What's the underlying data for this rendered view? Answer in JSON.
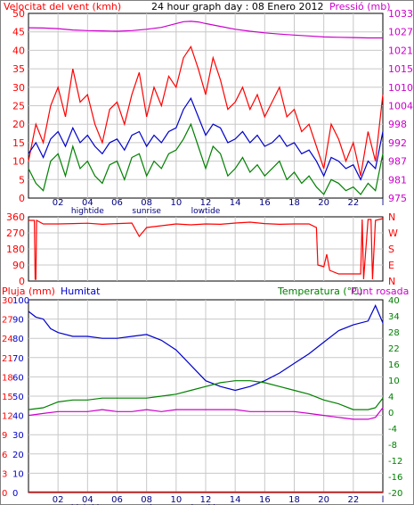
{
  "colors": {
    "wind_gust": "#ff0000",
    "wind_avg": "#0000cc",
    "wind_min": "#008000",
    "pressure": "#cc00cc",
    "direction": "#ff0000",
    "rain": "#ff0000",
    "humidity": "#0000cc",
    "temperature": "#008000",
    "dewpoint": "#cc00cc",
    "grid": "#c8c8c8",
    "panel_border": "#000000"
  },
  "chart_data": [
    {
      "type": "line",
      "id": "wind_pressure",
      "title": "24 hour graph day : 08 Enero 2012",
      "ylabel_left": "Velocitat del vent (kmh)",
      "ylabel_right": "Pressió (mb)",
      "x_ticks": [
        "02",
        "04",
        "06",
        "08",
        "10",
        "12",
        "14",
        "16",
        "18",
        "20",
        "22",
        "l"
      ],
      "x_annotations": [
        "hightide",
        "sunrise",
        "lowtide"
      ],
      "y_left_ticks": [
        "0",
        "5",
        "10",
        "15",
        "20",
        "25",
        "30",
        "35",
        "40",
        "45",
        "50"
      ],
      "y_right_ticks": [
        "975",
        "981",
        "987",
        "992",
        "998",
        "1004",
        "1010",
        "1015",
        "1021",
        "1027",
        "1033"
      ],
      "y_left_range": [
        0,
        50
      ],
      "y_right_range": [
        975,
        1033
      ],
      "x_range": [
        0,
        24
      ],
      "grid": true,
      "series": [
        {
          "key": "gust",
          "color_key": "wind_gust",
          "axis": "left",
          "x": [
            0,
            0.5,
            1,
            1.5,
            2,
            2.5,
            3,
            3.5,
            4,
            4.5,
            5,
            5.5,
            6,
            6.5,
            7,
            7.5,
            8,
            8.5,
            9,
            9.5,
            10,
            10.5,
            11,
            11.5,
            12,
            12.5,
            13,
            13.5,
            14,
            14.5,
            15,
            15.5,
            16,
            16.5,
            17,
            17.5,
            18,
            18.5,
            19,
            19.5,
            20,
            20.5,
            21,
            21.5,
            22,
            22.5,
            23,
            23.5,
            24
          ],
          "y": [
            10,
            20,
            15,
            25,
            30,
            22,
            35,
            26,
            28,
            20,
            15,
            24,
            26,
            20,
            28,
            34,
            22,
            30,
            25,
            33,
            30,
            38,
            41,
            35,
            28,
            38,
            32,
            24,
            26,
            30,
            24,
            28,
            22,
            26,
            30,
            22,
            24,
            18,
            20,
            14,
            8,
            20,
            16,
            10,
            15,
            6,
            18,
            10,
            28
          ]
        },
        {
          "key": "avg",
          "color_key": "wind_avg",
          "axis": "left",
          "x": [
            0,
            0.5,
            1,
            1.5,
            2,
            2.5,
            3,
            3.5,
            4,
            4.5,
            5,
            5.5,
            6,
            6.5,
            7,
            7.5,
            8,
            8.5,
            9,
            9.5,
            10,
            10.5,
            11,
            11.5,
            12,
            12.5,
            13,
            13.5,
            14,
            14.5,
            15,
            15.5,
            16,
            16.5,
            17,
            17.5,
            18,
            18.5,
            19,
            19.5,
            20,
            20.5,
            21,
            21.5,
            22,
            22.5,
            23,
            23.5,
            24
          ],
          "y": [
            12,
            15,
            11,
            16,
            18,
            14,
            19,
            15,
            17,
            14,
            12,
            15,
            16,
            13,
            17,
            18,
            14,
            17,
            15,
            18,
            19,
            24,
            27,
            22,
            17,
            20,
            19,
            15,
            16,
            18,
            15,
            17,
            14,
            15,
            17,
            14,
            15,
            12,
            13,
            10,
            6,
            11,
            10,
            8,
            9,
            5,
            10,
            8,
            18
          ]
        },
        {
          "key": "min",
          "color_key": "wind_min",
          "axis": "left",
          "x": [
            0,
            0.5,
            1,
            1.5,
            2,
            2.5,
            3,
            3.5,
            4,
            4.5,
            5,
            5.5,
            6,
            6.5,
            7,
            7.5,
            8,
            8.5,
            9,
            9.5,
            10,
            10.5,
            11,
            11.5,
            12,
            12.5,
            13,
            13.5,
            14,
            14.5,
            15,
            15.5,
            16,
            16.5,
            17,
            17.5,
            18,
            18.5,
            19,
            19.5,
            20,
            20.5,
            21,
            21.5,
            22,
            22.5,
            23,
            23.5,
            24
          ],
          "y": [
            8,
            4,
            2,
            10,
            12,
            6,
            14,
            8,
            10,
            6,
            4,
            9,
            10,
            5,
            11,
            12,
            6,
            10,
            8,
            12,
            13,
            16,
            20,
            14,
            8,
            14,
            12,
            6,
            8,
            11,
            7,
            9,
            6,
            8,
            10,
            5,
            7,
            4,
            6,
            3,
            1,
            5,
            4,
            2,
            3,
            1,
            4,
            2,
            12
          ]
        },
        {
          "key": "pressure",
          "color_key": "pressure",
          "axis": "right",
          "x": [
            0,
            1,
            2,
            3,
            4,
            5,
            6,
            7,
            8,
            9,
            10,
            10.5,
            11,
            11.5,
            12,
            13,
            14,
            15,
            16,
            17,
            18,
            19,
            20,
            21,
            22,
            23,
            24
          ],
          "y": [
            1028.5,
            1028.4,
            1028.2,
            1027.8,
            1027.6,
            1027.5,
            1027.4,
            1027.6,
            1028,
            1028.6,
            1029.8,
            1030.4,
            1030.5,
            1030.3,
            1029.8,
            1028.9,
            1028,
            1027.4,
            1026.9,
            1026.5,
            1026.2,
            1025.9,
            1025.6,
            1025.5,
            1025.4,
            1025.3,
            1025.3
          ]
        }
      ]
    },
    {
      "type": "line",
      "id": "wind_direction",
      "y_left_ticks": [
        "0",
        "90",
        "180",
        "270",
        "360"
      ],
      "y_right_ticks": [
        "N",
        "E",
        "S",
        "W",
        "N"
      ],
      "y_range": [
        0,
        360
      ],
      "x_range": [
        0,
        24
      ],
      "grid": true,
      "series": [
        {
          "key": "direction",
          "color_key": "direction",
          "x": [
            0,
            0.4,
            0.45,
            0.5,
            0.55,
            1,
            2,
            3,
            4,
            5,
            6,
            7,
            7.5,
            8,
            9,
            10,
            11,
            12,
            13,
            14,
            15,
            16,
            17,
            18,
            19,
            19.5,
            19.6,
            20,
            20.2,
            20.4,
            21,
            22,
            22.5,
            22.6,
            22.7,
            23,
            23.2,
            23.3,
            23.5,
            24
          ],
          "y": [
            340,
            340,
            10,
            10,
            340,
            320,
            320,
            322,
            324,
            318,
            322,
            325,
            250,
            300,
            310,
            320,
            315,
            320,
            318,
            325,
            330,
            322,
            318,
            320,
            320,
            300,
            90,
            80,
            150,
            60,
            40,
            40,
            40,
            345,
            10,
            345,
            345,
            10,
            340,
            350
          ]
        }
      ]
    },
    {
      "type": "line",
      "id": "rain_humidity_temperature",
      "ylabel_rain": "Pluja (mm)",
      "ylabel_humidity": "Humitat",
      "ylabel_right": "Temperatura (°C)",
      "ylabel_right2": "Punt rosada",
      "x_ticks": [
        "02",
        "04",
        "06",
        "08",
        "10",
        "12",
        "14",
        "16",
        "18",
        "20",
        "22",
        "l"
      ],
      "x_annotations": [
        "hightide",
        "sunrise",
        "lowtide"
      ],
      "y_humidity_ticks": [
        "0",
        "10",
        "20",
        "30",
        "40",
        "50",
        "60",
        "70",
        "80",
        "90",
        "100"
      ],
      "y_rain_ticks": [
        "0",
        "3",
        "6",
        "9",
        "12",
        "15",
        "18",
        "21",
        "24",
        "27",
        "30"
      ],
      "y_right_ticks": [
        "-20",
        "-16",
        "-12",
        "-8",
        "-4",
        "0",
        "4",
        "10",
        "16",
        "22",
        "28",
        "34",
        "40"
      ],
      "y_humidity_range": [
        0,
        100
      ],
      "x_range": [
        0,
        24
      ],
      "grid": true,
      "series": [
        {
          "key": "rain",
          "color_key": "rain",
          "axis": "humidity",
          "x": [
            0,
            24
          ],
          "y": [
            0.3,
            0.3
          ]
        },
        {
          "key": "humidity",
          "color_key": "humidity",
          "axis": "humidity",
          "x": [
            0,
            0.5,
            1,
            1.5,
            2,
            3,
            4,
            5,
            6,
            7,
            8,
            9,
            10,
            11,
            12,
            13,
            14,
            15,
            16,
            17,
            18,
            19,
            20,
            21,
            22,
            23,
            23.5,
            24
          ],
          "y": [
            94,
            91,
            90,
            85,
            83,
            81,
            81,
            80,
            80,
            81,
            82,
            79,
            74,
            66,
            58,
            55,
            53,
            55,
            58,
            62,
            67,
            72,
            78,
            84,
            87,
            89,
            97,
            88
          ]
        },
        {
          "key": "temperature",
          "color_key": "temperature",
          "axis": "humidity",
          "x": [
            0,
            1,
            2,
            3,
            4,
            5,
            6,
            7,
            8,
            9,
            10,
            11,
            12,
            13,
            14,
            15,
            16,
            17,
            18,
            19,
            20,
            21,
            22,
            23,
            23.5,
            24
          ],
          "y": [
            43,
            44,
            47,
            48,
            48,
            49,
            49,
            49,
            49,
            50,
            51,
            53,
            55,
            57,
            58,
            58,
            57,
            55,
            53,
            51,
            48,
            46,
            43,
            43,
            44,
            49
          ]
        },
        {
          "key": "dewpoint",
          "color_key": "dewpoint",
          "axis": "humidity",
          "x": [
            0,
            1,
            2,
            3,
            4,
            5,
            6,
            7,
            8,
            9,
            10,
            11,
            12,
            13,
            14,
            15,
            16,
            17,
            18,
            19,
            20,
            21,
            22,
            23,
            23.5,
            24
          ],
          "y": [
            40,
            41,
            42,
            42,
            42,
            43,
            42,
            42,
            43,
            42,
            43,
            43,
            43,
            43,
            43,
            42,
            42,
            42,
            42,
            41,
            40,
            39,
            38,
            38,
            39,
            44
          ]
        }
      ]
    }
  ]
}
